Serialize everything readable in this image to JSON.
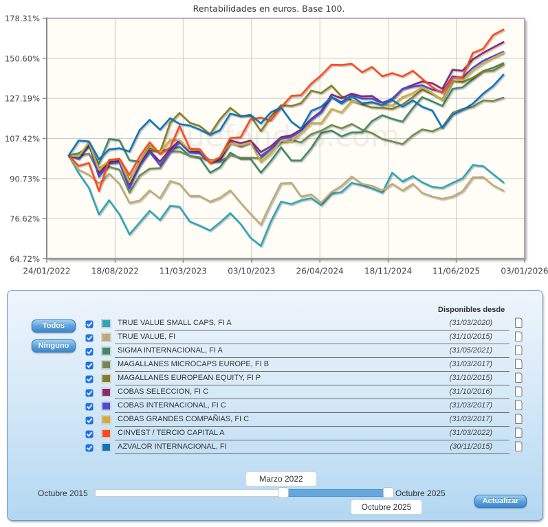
{
  "chart_data": {
    "type": "line",
    "title": "Rentabilidades en euros. Base 100.",
    "watermark": "quefondos.com",
    "xlabel": "",
    "ylabel": "",
    "y_scale": "log",
    "ylim": [
      64.72,
      178.31
    ],
    "xlim": [
      "2022-01-24",
      "2026-01-03"
    ],
    "grid": true,
    "legend": "bottom",
    "y_ticks": [
      {
        "value": 64.72,
        "label": "64.72%"
      },
      {
        "value": 76.62,
        "label": "76.62%"
      },
      {
        "value": 90.73,
        "label": "90.73%"
      },
      {
        "value": 107.42,
        "label": "107.42%"
      },
      {
        "value": 127.19,
        "label": "127.19%"
      },
      {
        "value": 150.6,
        "label": "150.60%"
      },
      {
        "value": 178.31,
        "label": "178.31%"
      }
    ],
    "x_ticks": [
      {
        "date": "2022-01-24",
        "label": "24/01/2022"
      },
      {
        "date": "2022-08-18",
        "label": "18/08/2022"
      },
      {
        "date": "2023-03-11",
        "label": "11/03/2023"
      },
      {
        "date": "2023-10-03",
        "label": "03/10/2023"
      },
      {
        "date": "2024-04-26",
        "label": "26/04/2024"
      },
      {
        "date": "2024-11-18",
        "label": "18/11/2024"
      },
      {
        "date": "2025-06-11",
        "label": "11/06/2025"
      },
      {
        "date": "2026-01-03",
        "label": "03/01/2026"
      }
    ],
    "x": [
      "2022-03-31",
      "2022-04-30",
      "2022-05-31",
      "2022-06-30",
      "2022-07-31",
      "2022-08-31",
      "2022-09-30",
      "2022-10-31",
      "2022-11-30",
      "2022-12-31",
      "2023-01-31",
      "2023-02-28",
      "2023-03-31",
      "2023-04-30",
      "2023-05-31",
      "2023-06-30",
      "2023-07-31",
      "2023-08-31",
      "2023-09-30",
      "2023-10-31",
      "2023-11-30",
      "2023-12-31",
      "2024-01-31",
      "2024-02-29",
      "2024-03-31",
      "2024-04-30",
      "2024-05-31",
      "2024-06-30",
      "2024-07-31",
      "2024-08-31",
      "2024-09-30",
      "2024-10-31",
      "2024-11-30",
      "2024-12-31",
      "2025-01-31",
      "2025-02-28",
      "2025-03-31",
      "2025-04-30",
      "2025-05-31",
      "2025-06-30",
      "2025-07-31",
      "2025-08-31",
      "2025-09-30",
      "2025-10-31"
    ],
    "series": [
      {
        "name": "TRUE VALUE SMALL CAPS, FI A",
        "color": "#2fa5b8",
        "values": [
          100,
          92.8,
          87.2,
          78.0,
          82.8,
          78.0,
          71.7,
          75.4,
          79.2,
          76.2,
          80.9,
          80.5,
          75.7,
          74.4,
          72.9,
          75.4,
          78.4,
          74.9,
          70.7,
          68.3,
          75.7,
          82.3,
          81.5,
          82.8,
          83.5,
          81.1,
          85.1,
          85.7,
          89.1,
          88.2,
          87.0,
          85.5,
          93.0,
          89.6,
          91.7,
          89.3,
          87.6,
          87.2,
          89.1,
          90.8,
          96.0,
          95.6,
          92.4,
          89.3
        ]
      },
      {
        "name": "TRUE VALUE, FI",
        "color": "#bfaa76",
        "values": [
          100,
          94.2,
          92.2,
          88.9,
          92.6,
          88.7,
          81.9,
          82.7,
          86.3,
          83.5,
          89.8,
          88.7,
          84.3,
          84.3,
          82.3,
          83.7,
          86.3,
          81.9,
          78.2,
          74.7,
          81.7,
          88.9,
          89.1,
          84.1,
          84.9,
          81.9,
          85.7,
          88.0,
          91.5,
          88.7,
          88.0,
          86.3,
          88.7,
          86.3,
          88.7,
          85.4,
          84.1,
          83.3,
          84.1,
          86.0,
          91.2,
          91.3,
          88.2,
          86.2
        ]
      },
      {
        "name": "SIGMA INTERNACIONAL, FI A",
        "color": "#3f8868",
        "values": [
          100,
          100.9,
          103.8,
          96.6,
          107.2,
          106.6,
          98.0,
          97.4,
          102.0,
          102.0,
          102.6,
          103.7,
          99.8,
          99.0,
          93.0,
          95.2,
          101.2,
          98.6,
          98.6,
          93.0,
          97.7,
          103.5,
          97.9,
          97.9,
          103.2,
          109.9,
          111.1,
          108.4,
          110.2,
          110.2,
          115.6,
          118.5,
          116.7,
          115.3,
          122.2,
          127.9,
          125.6,
          123.2,
          132.4,
          133.3,
          137.9,
          142.7,
          144.7,
          147.5
        ]
      },
      {
        "name": "MAGALLANES MICROCAPS EUROPE, FI B",
        "color": "#6f8a50",
        "values": [
          100,
          99.8,
          100.8,
          92.8,
          95.3,
          94.2,
          85.5,
          91.9,
          94.6,
          94.8,
          101.7,
          101.7,
          99.8,
          99.3,
          97.4,
          97.4,
          100.1,
          99.1,
          99.1,
          98.8,
          102.9,
          105.7,
          106.8,
          105.7,
          109.4,
          111.0,
          113.7,
          112.1,
          114.2,
          111.5,
          109.9,
          107.2,
          106.1,
          104.9,
          108.9,
          111.6,
          110.7,
          112.8,
          119.7,
          121.7,
          122.8,
          126.1,
          125.8,
          127.6
        ]
      },
      {
        "name": "MAGALLANES EUROPEAN EQUITY, FI P",
        "color": "#857d24",
        "values": [
          100,
          99.1,
          105.0,
          94.6,
          97.7,
          97.7,
          90.1,
          96.0,
          103.0,
          101.2,
          114.8,
          119.6,
          114.8,
          113.2,
          109.4,
          116.5,
          122.2,
          118.2,
          118.2,
          110.8,
          117.6,
          123.6,
          123.2,
          124.6,
          131.4,
          130.1,
          134.2,
          128.3,
          126.2,
          124.0,
          122.5,
          122.2,
          121.7,
          124.0,
          127.9,
          132.0,
          129.5,
          126.7,
          137.0,
          136.2,
          138.8,
          142.7,
          142.9,
          146.6
        ]
      },
      {
        "name": "COBAS SELECCION, FI C",
        "color": "#8a2a6c",
        "values": [
          100,
          98.8,
          105.7,
          92.7,
          97.1,
          97.7,
          88.5,
          96.9,
          102.0,
          97.4,
          102.6,
          106.6,
          101.7,
          101.5,
          97.9,
          98.8,
          106.6,
          105.3,
          106.5,
          101.5,
          103.9,
          108.0,
          108.9,
          111.5,
          116.7,
          120.5,
          129.3,
          127.3,
          129.8,
          128.3,
          128.5,
          124.9,
          126.7,
          132.4,
          134.6,
          136.6,
          135.6,
          132.4,
          143.6,
          142.9,
          150.0,
          154.1,
          157.6,
          161.2
        ]
      },
      {
        "name": "COBAS INTERNACIONAL, FI C",
        "color": "#4a4adb",
        "values": [
          100,
          98.6,
          105.0,
          91.4,
          96.6,
          97.1,
          87.0,
          96.0,
          101.5,
          96.0,
          101.5,
          105.7,
          101.2,
          100.9,
          97.1,
          98.0,
          105.6,
          103.9,
          105.7,
          99.8,
          102.7,
          107.3,
          108.1,
          111.0,
          116.2,
          119.9,
          128.0,
          125.2,
          128.9,
          127.1,
          127.1,
          124.6,
          127.1,
          132.4,
          133.6,
          134.4,
          132.0,
          130.8,
          139.6,
          138.8,
          144.7,
          149.0,
          151.9,
          154.8
        ]
      },
      {
        "name": "COBAS GRANDES COMPAÑIAS, FI C",
        "color": "#d1ab3e",
        "values": [
          100,
          99.6,
          105.7,
          94.2,
          97.9,
          98.4,
          89.3,
          97.4,
          104.2,
          101.3,
          106.8,
          106.6,
          102.3,
          102.3,
          97.4,
          99.3,
          105.3,
          104.2,
          105.6,
          97.3,
          100.8,
          106.3,
          106.0,
          109.9,
          114.6,
          114.6,
          121.7,
          119.9,
          125.8,
          124.6,
          125.2,
          124.0,
          123.4,
          127.9,
          130.1,
          133.3,
          130.1,
          126.1,
          137.0,
          137.5,
          143.3,
          147.5,
          150.9,
          154.1
        ]
      },
      {
        "name": "CINVEST / TERCIO CAPITAL A",
        "color": "#ff4a1c",
        "values": [
          100,
          95.7,
          96.9,
          86.1,
          98.2,
          98.6,
          92.1,
          99.6,
          105.7,
          100.6,
          103.5,
          113.2,
          103.0,
          102.7,
          96.8,
          99.3,
          107.6,
          108.0,
          116.5,
          117.3,
          115.9,
          122.5,
          128.5,
          128.9,
          135.3,
          140.2,
          146.6,
          146.4,
          147.1,
          142.0,
          145.2,
          139.6,
          141.5,
          139.5,
          142.9,
          138.2,
          133.3,
          130.1,
          138.6,
          139.2,
          154.1,
          156.8,
          166.1,
          170.0
        ]
      },
      {
        "name": "AZVALOR INTERNACIONAL, FI",
        "color": "#0a75bd",
        "values": [
          100,
          106.5,
          106.1,
          98.4,
          102.6,
          103.1,
          101.7,
          111.3,
          116.2,
          111.5,
          117.0,
          114.2,
          113.4,
          111.5,
          109.1,
          111.3,
          119.3,
          117.9,
          118.7,
          114.5,
          119.9,
          122.5,
          115.3,
          111.9,
          120.7,
          122.8,
          127.9,
          124.4,
          128.3,
          124.6,
          125.2,
          123.6,
          126.4,
          122.8,
          126.1,
          122.8,
          120.8,
          112.3,
          118.7,
          121.1,
          124.4,
          129.8,
          134.0,
          140.6
        ]
      }
    ]
  },
  "panel": {
    "select_all_label": "Todos",
    "select_none_label": "Ninguno",
    "available_header": "Disponibles desde",
    "update_label": "Actualizar",
    "funds": [
      {
        "checked": true,
        "available_since": "(31/03/2020)"
      },
      {
        "checked": true,
        "available_since": "(31/10/2015)"
      },
      {
        "checked": true,
        "available_since": "(31/05/2021)"
      },
      {
        "checked": true,
        "available_since": "(31/03/2017)"
      },
      {
        "checked": true,
        "available_since": "(31/10/2015)"
      },
      {
        "checked": true,
        "available_since": "(31/10/2016)"
      },
      {
        "checked": true,
        "available_since": "(31/03/2017)"
      },
      {
        "checked": true,
        "available_since": "(31/03/2017)"
      },
      {
        "checked": true,
        "available_since": "(31/03/2022)"
      },
      {
        "checked": true,
        "available_since": "(30/11/2015)"
      }
    ]
  },
  "period_slider": {
    "min_label": "Octubre 2015",
    "max_label": "Octubre 2025",
    "start_label": "Marzo 2022",
    "end_label": "Octubre 2025",
    "min": "2015-10",
    "max": "2025-10",
    "start": "2022-03",
    "end": "2025-10"
  }
}
